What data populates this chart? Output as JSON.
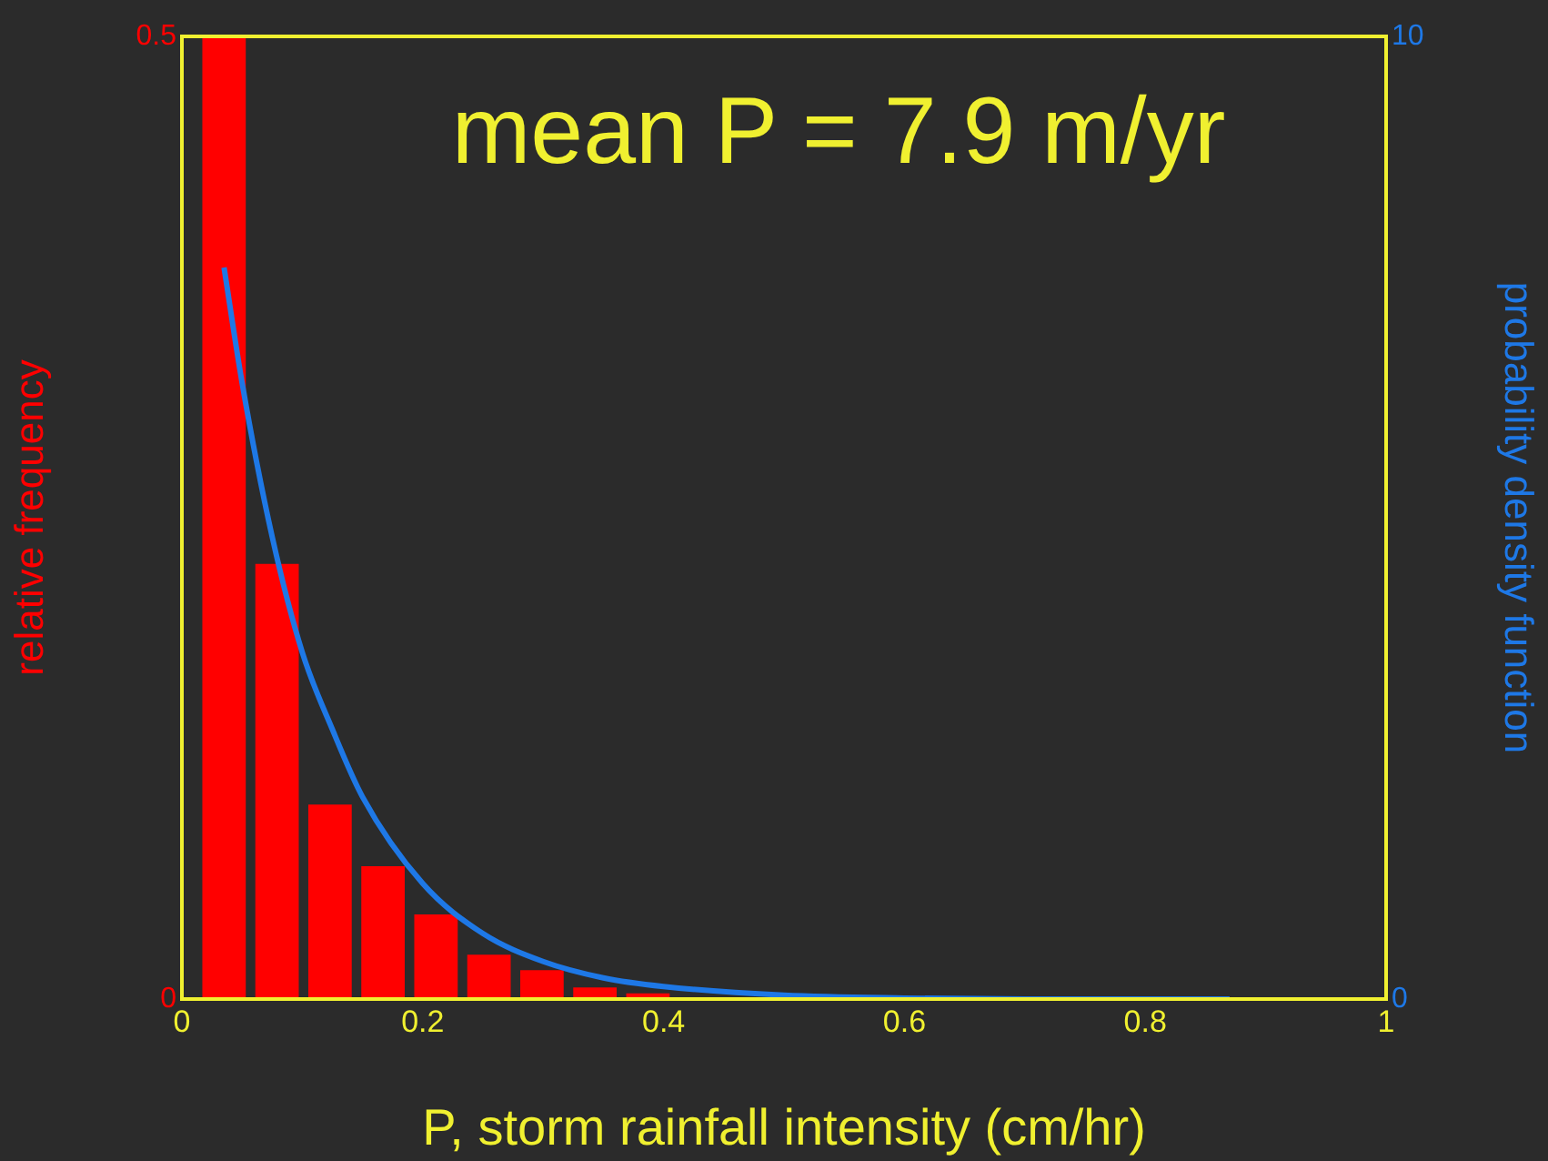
{
  "chart_data": {
    "type": "histogram",
    "xlabel": "P, storm rainfall intensity (cm/hr)",
    "ylabel": "relative frequency",
    "y2label": "probability density function",
    "annotations": [
      "mean P = 7.9 m/yr"
    ],
    "bins": [
      0.013,
      0.057,
      0.101,
      0.145,
      0.189,
      0.233,
      0.277,
      0.321,
      0.365,
      0.409
    ],
    "values": [
      0.5,
      0.226,
      0.101,
      0.069,
      0.044,
      0.023,
      0.015,
      0.006,
      0.003
    ],
    "color": "#ff0000",
    "series": [
      {
        "type": "line",
        "axis": "y2",
        "color": "#1e78e6",
        "x": [
          0.035,
          0.05,
          0.075,
          0.1,
          0.125,
          0.15,
          0.2,
          0.25,
          0.3,
          0.35,
          0.4,
          0.5,
          0.6,
          0.7,
          0.8,
          0.87
        ],
        "values": [
          7.6,
          6.4,
          4.8,
          3.6,
          2.8,
          2.1,
          1.2,
          0.68,
          0.39,
          0.22,
          0.13,
          0.04,
          0.01,
          0,
          0,
          0
        ]
      }
    ],
    "xlim": [
      0,
      1
    ],
    "xticks": [
      0,
      0.2,
      0.4,
      0.6,
      0.8,
      1
    ],
    "ylim": [
      0,
      0.5
    ],
    "yticks": [
      0,
      0.5
    ],
    "y2lim": [
      0,
      10
    ],
    "y2ticks": [
      0,
      10
    ],
    "grid": false,
    "legend": false
  }
}
